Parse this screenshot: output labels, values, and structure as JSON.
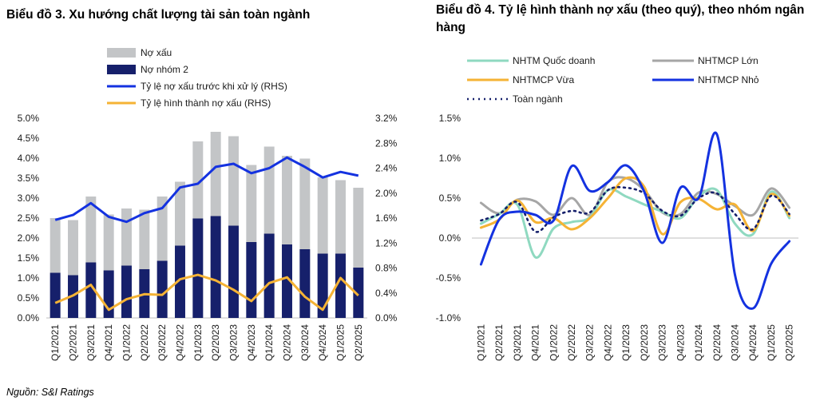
{
  "titles": {
    "left": "Biểu đồ 3. Xu hướng chất lượng tài sản toàn ngành",
    "right": "Biểu đồ 4. Tỷ lệ hình thành nợ xấu (theo quý), theo nhóm ngân hàng"
  },
  "source": "Nguồn: S&I Ratings",
  "chart_data": [
    {
      "type": "bar",
      "title": "Biểu đồ 3. Xu hướng chất lượng tài sản toàn ngành",
      "categories": [
        "Q1/2021",
        "Q2/2021",
        "Q3/2021",
        "Q4/2021",
        "Q1/2022",
        "Q2/2022",
        "Q3/2022",
        "Q4/2022",
        "Q1/2023",
        "Q2/2023",
        "Q3/2023",
        "Q4/2023",
        "Q1/2024",
        "Q2/2024",
        "Q3/2024",
        "Q4/2024",
        "Q1/2025",
        "Q2/2025"
      ],
      "y_left": {
        "ylim": [
          0,
          5.0
        ],
        "ticks": [
          "0.0%",
          "0.5%",
          "1.0%",
          "1.5%",
          "2.0%",
          "2.5%",
          "3.0%",
          "3.5%",
          "4.0%",
          "4.5%",
          "5.0%"
        ]
      },
      "y_right": {
        "ylim": [
          0,
          3.2
        ],
        "ticks": [
          "0.0%",
          "0.4%",
          "0.8%",
          "1.2%",
          "1.6%",
          "2.0%",
          "2.4%",
          "2.8%",
          "3.2%"
        ]
      },
      "series": [
        {
          "name": "Nợ xấu",
          "kind": "bar",
          "axis": "left",
          "color": "#c3c5c7",
          "values": [
            2.5,
            2.45,
            3.04,
            2.59,
            2.74,
            2.71,
            3.04,
            3.41,
            4.42,
            4.66,
            4.55,
            3.83,
            4.29,
            4.06,
            3.99,
            3.52,
            3.45,
            3.26
          ]
        },
        {
          "name": "Nợ nhóm 2",
          "kind": "bar",
          "axis": "left",
          "color": "#16206b",
          "values": [
            1.13,
            1.07,
            1.39,
            1.19,
            1.31,
            1.22,
            1.43,
            1.81,
            2.49,
            2.55,
            2.31,
            1.9,
            2.11,
            1.84,
            1.72,
            1.61,
            1.61,
            1.26
          ]
        },
        {
          "name": "Tỷ lệ nợ xấu trước khi xử lý (RHS)",
          "kind": "line",
          "axis": "right",
          "color": "#1432e0",
          "values": [
            1.57,
            1.65,
            1.84,
            1.62,
            1.54,
            1.68,
            1.76,
            2.09,
            2.15,
            2.42,
            2.47,
            2.32,
            2.4,
            2.57,
            2.42,
            2.25,
            2.34,
            2.28
          ]
        },
        {
          "name": "Tỷ lệ hình thành nợ xấu (RHS)",
          "kind": "line",
          "axis": "right",
          "color": "#f5b335",
          "values": [
            0.24,
            0.36,
            0.53,
            0.13,
            0.3,
            0.38,
            0.37,
            0.62,
            0.69,
            0.6,
            0.45,
            0.27,
            0.56,
            0.65,
            0.34,
            0.13,
            0.64,
            0.36
          ]
        }
      ]
    },
    {
      "type": "line",
      "title": "Biểu đồ 4. Tỷ lệ hình thành nợ xấu (theo quý), theo nhóm ngân hàng",
      "categories": [
        "Q1/2021",
        "Q2/2021",
        "Q3/2021",
        "Q4/2021",
        "Q1/2022",
        "Q2/2022",
        "Q3/2022",
        "Q4/2022",
        "Q1/2023",
        "Q2/2023",
        "Q3/2023",
        "Q4/2023",
        "Q1/2024",
        "Q2/2024",
        "Q3/2024",
        "Q4/2024",
        "Q1/2025",
        "Q2/2025"
      ],
      "ylim": [
        -1.0,
        1.5
      ],
      "ticks": [
        "-1.0%",
        "-0.5%",
        "0.0%",
        "0.5%",
        "1.0%",
        "1.5%"
      ],
      "series": [
        {
          "name": "NHTM Quốc doanh",
          "color": "#8fd9c0",
          "dash": "",
          "values": [
            0.18,
            0.3,
            0.42,
            -0.24,
            0.12,
            0.2,
            0.26,
            0.6,
            0.52,
            0.42,
            0.33,
            0.25,
            0.52,
            0.6,
            0.18,
            0.05,
            0.58,
            0.25
          ]
        },
        {
          "name": "NHTMCP Lớn",
          "color": "#a6a6a6",
          "dash": "",
          "values": [
            0.44,
            0.31,
            0.48,
            0.46,
            0.29,
            0.5,
            0.29,
            0.7,
            0.75,
            0.6,
            0.32,
            0.3,
            0.57,
            0.55,
            0.4,
            0.29,
            0.62,
            0.38
          ]
        },
        {
          "name": "NHTMCP Vừa",
          "color": "#f5b335",
          "dash": "",
          "values": [
            0.13,
            0.23,
            0.47,
            0.2,
            0.25,
            0.11,
            0.25,
            0.5,
            0.75,
            0.64,
            0.05,
            0.45,
            0.49,
            0.36,
            0.42,
            0.09,
            0.55,
            0.28
          ]
        },
        {
          "name": "NHTMCP Nhỏ",
          "color": "#1432e0",
          "dash": "",
          "values": [
            -0.33,
            0.23,
            0.33,
            0.29,
            0.22,
            0.9,
            0.59,
            0.7,
            0.91,
            0.58,
            -0.06,
            0.63,
            0.5,
            1.3,
            -0.46,
            -0.88,
            -0.32,
            -0.04
          ]
        },
        {
          "name": "Toàn ngành",
          "color": "#16206b",
          "dash": "2,5",
          "values": [
            0.22,
            0.3,
            0.45,
            0.08,
            0.26,
            0.34,
            0.32,
            0.6,
            0.63,
            0.56,
            0.34,
            0.28,
            0.5,
            0.56,
            0.3,
            0.11,
            0.53,
            0.3
          ]
        }
      ]
    }
  ]
}
